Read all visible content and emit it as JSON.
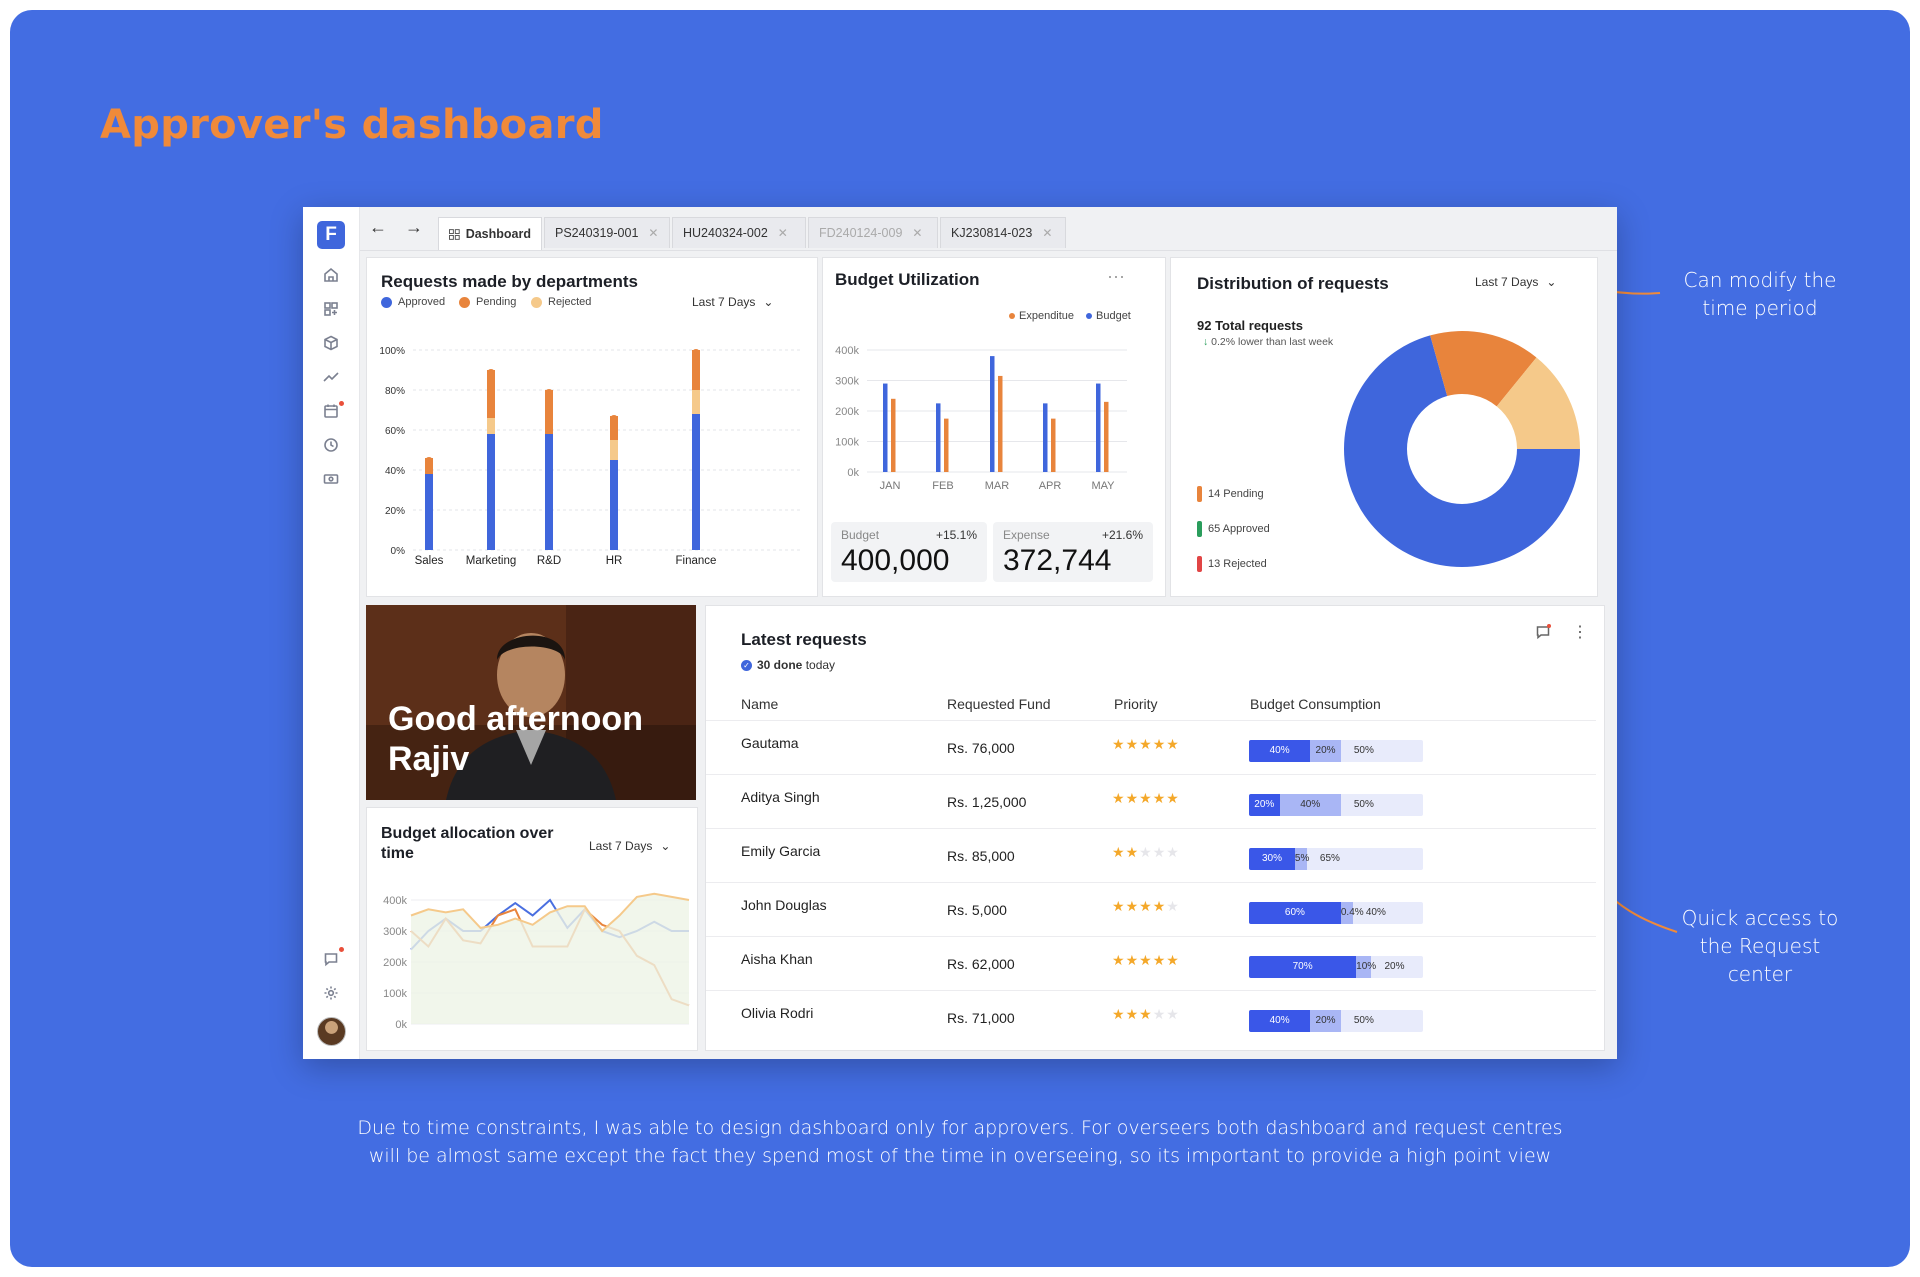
{
  "page": {
    "title": "Approver's dashboard",
    "annotation_time": "Can modify the time period",
    "annotation_request": "Quick access to the Request center",
    "footer_line1": "Due to time constraints, I was able to design dashboard only for approvers. For overseers both dashboard and request centres",
    "footer_line2": "will be almost same except the fact they spend most of the time in overseeing, so its important to provide a high point view"
  },
  "sidebar": {
    "logo": "F",
    "icons": [
      "home-icon",
      "apps-grid-icon",
      "cube-icon",
      "trend-line-icon",
      "calendar-icon",
      "clock-icon",
      "money-card-icon",
      "chat-icon",
      "gear-icon"
    ]
  },
  "topbar": {
    "back": "←",
    "forward": "→",
    "tabs": [
      {
        "label": "Dashboard",
        "active": true
      },
      {
        "label": "PS240319-001",
        "active": false
      },
      {
        "label": "HU240324-002",
        "active": false
      },
      {
        "label": "FD240124-009",
        "active": false
      },
      {
        "label": "KJ230814-023",
        "active": false
      }
    ]
  },
  "colors": {
    "approved": "#3f66dc",
    "pending": "#e8843c",
    "rejected": "#f5c98a",
    "expenditure": "#e8843c",
    "budget": "#3f66dc",
    "background": "#436de2",
    "title": "#f08a3a"
  },
  "requests_dept": {
    "title": "Requests made by departments",
    "period": "Last 7 Days",
    "legend": [
      "Approved",
      "Pending",
      "Rejected"
    ]
  },
  "budget_util": {
    "title": "Budget Utilization",
    "legend": [
      "Expenditue",
      "Budget"
    ],
    "budget_label": "Budget",
    "budget_change": "+15.1%",
    "budget_value": "400,000",
    "expense_label": "Expense",
    "expense_change": "+21.6%",
    "expense_value": "372,744"
  },
  "distribution": {
    "title": "Distribution of requests",
    "period": "Last 7 Days",
    "total": "92 Total requests",
    "change": "0.2% lower than last week",
    "pending": "14 Pending",
    "approved": "65 Approved",
    "rejected": "13 Rejected"
  },
  "greeting": {
    "line1": "Good afternoon",
    "line2": "Rajiv"
  },
  "budget_alloc": {
    "title": "Budget allocation over time",
    "period": "Last 7 Days"
  },
  "latest": {
    "title": "Latest requests",
    "done": "30 done",
    "done_suffix": "today",
    "headers": [
      "Name",
      "Requested Fund",
      "Priority",
      "Budget Consumption"
    ],
    "rows": [
      {
        "name": "Gautama",
        "fund": "Rs. 76,000",
        "stars": 5,
        "bc": [
          40,
          20
        ],
        "labels": [
          "40%",
          "20%",
          "50%"
        ]
      },
      {
        "name": "Aditya Singh",
        "fund": "Rs. 1,25,000",
        "stars": 5,
        "bc": [
          20,
          40
        ],
        "labels": [
          "20%",
          "40%",
          "50%"
        ]
      },
      {
        "name": "Emily Garcia",
        "fund": "Rs. 85,000",
        "stars": 2,
        "bc": [
          30,
          5
        ],
        "labels": [
          "30%",
          "5%",
          "65%"
        ]
      },
      {
        "name": "John Douglas",
        "fund": "Rs. 5,000",
        "stars": 4,
        "bc": [
          60,
          0.4
        ],
        "labels": [
          "60%",
          "0.4%",
          "40%"
        ]
      },
      {
        "name": "Aisha Khan",
        "fund": "Rs. 62,000",
        "stars": 5,
        "bc": [
          70,
          10
        ],
        "labels": [
          "70%",
          "10%",
          "20%"
        ]
      },
      {
        "name": "Olivia Rodri",
        "fund": "Rs. 71,000",
        "stars": 3,
        "bc": [
          40,
          20
        ],
        "labels": [
          "40%",
          "20%",
          "50%"
        ]
      }
    ]
  },
  "chart_data": [
    {
      "type": "bar",
      "title": "Requests made by departments",
      "categories": [
        "Sales",
        "Marketing",
        "R&D",
        "HR",
        "Finance"
      ],
      "series": [
        {
          "name": "Approved",
          "values": [
            38,
            58,
            58,
            45,
            68
          ]
        },
        {
          "name": "Rejected",
          "values": [
            0,
            8,
            0,
            10,
            12
          ]
        },
        {
          "name": "Pending",
          "values": [
            8,
            24,
            22,
            12,
            20
          ]
        }
      ],
      "ylim": [
        0,
        100
      ],
      "yticks": [
        "0%",
        "20%",
        "40%",
        "60%",
        "80%",
        "100%"
      ]
    },
    {
      "type": "bar",
      "title": "Budget Utilization",
      "categories": [
        "JAN",
        "FEB",
        "MAR",
        "APR",
        "MAY"
      ],
      "series": [
        {
          "name": "Budget",
          "values": [
            290,
            225,
            380,
            225,
            290
          ]
        },
        {
          "name": "Expenditue",
          "values": [
            240,
            175,
            315,
            175,
            230
          ]
        }
      ],
      "ylim": [
        0,
        400
      ],
      "yticks": [
        "0k",
        "100k",
        "200k",
        "300k",
        "400k"
      ]
    },
    {
      "type": "pie",
      "title": "Distribution of requests",
      "labels": [
        "Approved",
        "Pending",
        "Rejected"
      ],
      "values": [
        65,
        14,
        13
      ]
    },
    {
      "type": "line",
      "title": "Budget allocation over time",
      "x": [
        0,
        1,
        2,
        3,
        4,
        5,
        6,
        7,
        8,
        9,
        10,
        11,
        12,
        13,
        14,
        15,
        16
      ],
      "series": [
        {
          "name": "Blue",
          "values": [
            240,
            300,
            340,
            300,
            300,
            350,
            390,
            350,
            400,
            310,
            370,
            300,
            280,
            300,
            330,
            300,
            300
          ]
        },
        {
          "name": "Orange",
          "values": [
            300,
            250,
            340,
            270,
            260,
            350,
            370,
            250,
            250,
            250,
            370,
            320,
            300,
            220,
            190,
            80,
            60
          ]
        },
        {
          "name": "Yellow",
          "values": [
            350,
            370,
            360,
            370,
            310,
            320,
            340,
            320,
            360,
            380,
            380,
            300,
            350,
            410,
            420,
            410,
            400
          ]
        }
      ],
      "ylim": [
        0,
        400
      ],
      "yticks": [
        "0k",
        "100k",
        "200k",
        "300k",
        "400k"
      ]
    }
  ]
}
